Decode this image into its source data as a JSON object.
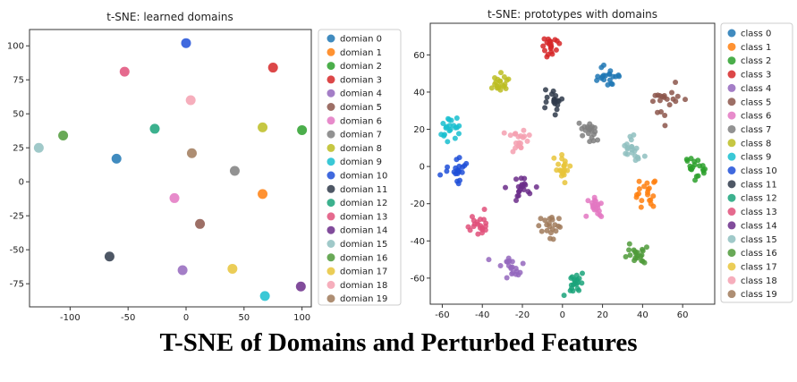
{
  "caption": "T-SNE of Domains and Perturbed Features",
  "colors": [
    "#1f77b4",
    "#ff7f0e",
    "#2ca02c",
    "#d62728",
    "#9467bd",
    "#8c564b",
    "#e377c2",
    "#7f7f7f",
    "#bcbd22",
    "#17becf",
    "#1f4fd8",
    "#2f3a4a",
    "#1aa37a",
    "#e0507a",
    "#6b2d8a",
    "#8fbfbf",
    "#4f9a3a",
    "#e8c43a",
    "#f5a0b0",
    "#a07a5a"
  ],
  "chart_data": [
    {
      "type": "scatter",
      "title": "t-SNE: learned domains",
      "xlim": [
        -135,
        108
      ],
      "ylim": [
        -92,
        112
      ],
      "xticks": [
        -100,
        -50,
        0,
        50,
        100
      ],
      "yticks": [
        -75,
        -50,
        -25,
        0,
        25,
        50,
        75,
        100
      ],
      "legend_position": "right",
      "series": [
        {
          "name": "domian 0",
          "x": -60,
          "y": 17
        },
        {
          "name": "domian 1",
          "x": 66,
          "y": -9
        },
        {
          "name": "domian 2",
          "x": 100,
          "y": 38
        },
        {
          "name": "domian 3",
          "x": 75,
          "y": 84
        },
        {
          "name": "domian 4",
          "x": -3,
          "y": -65
        },
        {
          "name": "domian 5",
          "x": 12,
          "y": -31
        },
        {
          "name": "domian 6",
          "x": -10,
          "y": -12
        },
        {
          "name": "domian 7",
          "x": 42,
          "y": 8
        },
        {
          "name": "domian 8",
          "x": 66,
          "y": 40
        },
        {
          "name": "domian 9",
          "x": 68,
          "y": -84
        },
        {
          "name": "domian 10",
          "x": 0,
          "y": 102
        },
        {
          "name": "domian 11",
          "x": -66,
          "y": -55
        },
        {
          "name": "domian 12",
          "x": -27,
          "y": 39
        },
        {
          "name": "domian 13",
          "x": -53,
          "y": 81
        },
        {
          "name": "domian 14",
          "x": 99,
          "y": -77
        },
        {
          "name": "domian 15",
          "x": -127,
          "y": 25
        },
        {
          "name": "domian 16",
          "x": -106,
          "y": 34
        },
        {
          "name": "domian 17",
          "x": 40,
          "y": -64
        },
        {
          "name": "domian 18",
          "x": 4,
          "y": 60
        },
        {
          "name": "domian 19",
          "x": 5,
          "y": 21
        }
      ]
    },
    {
      "type": "scatter",
      "title": "t-SNE: prototypes with domains",
      "xlim": [
        -66,
        76
      ],
      "ylim": [
        -74,
        77
      ],
      "xticks": [
        -60,
        -40,
        -20,
        0,
        20,
        40,
        60
      ],
      "yticks": [
        -60,
        -40,
        -20,
        0,
        20,
        40,
        60
      ],
      "legend_position": "right",
      "points_per_cluster": 20,
      "cluster_spread_x": 2.8,
      "cluster_spread_y": 3.2,
      "series": [
        {
          "name": "class 0",
          "center": [
            23,
            48
          ]
        },
        {
          "name": "class 1",
          "center": [
            41,
            -15
          ]
        },
        {
          "name": "class 2",
          "center": [
            67,
            -1
          ]
        },
        {
          "name": "class 3",
          "center": [
            -5,
            64
          ]
        },
        {
          "name": "class 4",
          "center": [
            -25,
            -54
          ]
        },
        {
          "name": "class 5",
          "center": [
            52,
            36
          ]
        },
        {
          "name": "class 6",
          "center": [
            16,
            -21
          ]
        },
        {
          "name": "class 7",
          "center": [
            13,
            18
          ]
        },
        {
          "name": "class 8",
          "center": [
            -31,
            44
          ]
        },
        {
          "name": "class 9",
          "center": [
            -56,
            20
          ]
        },
        {
          "name": "class 10",
          "center": [
            -53,
            -3
          ]
        },
        {
          "name": "class 11",
          "center": [
            -4,
            35
          ]
        },
        {
          "name": "class 12",
          "center": [
            5,
            -63
          ]
        },
        {
          "name": "class 13",
          "center": [
            -42,
            -31
          ]
        },
        {
          "name": "class 14",
          "center": [
            -21,
            -12
          ]
        },
        {
          "name": "class 15",
          "center": [
            35,
            10
          ]
        },
        {
          "name": "class 16",
          "center": [
            37,
            -46
          ]
        },
        {
          "name": "class 17",
          "center": [
            0,
            -1
          ]
        },
        {
          "name": "class 18",
          "center": [
            -22,
            15
          ]
        },
        {
          "name": "class 19",
          "center": [
            -6,
            -33
          ]
        }
      ]
    }
  ]
}
